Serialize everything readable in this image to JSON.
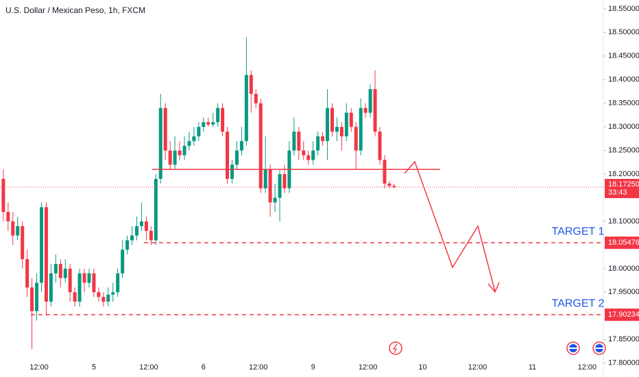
{
  "chart_data": {
    "type": "candlestick",
    "title": "U.S. Dollar / Mexican Peso, 1h, FXCM",
    "up_color": "#089981",
    "down_color": "#f23645",
    "open": [
      18.19,
      18.12,
      18.1,
      18.07,
      18.09,
      18.02,
      17.96,
      17.91,
      17.97,
      18.13,
      17.93,
      17.99,
      18.01,
      17.98,
      18.0,
      17.95,
      17.93,
      17.99,
      17.97,
      17.99,
      17.95,
      17.94,
      17.93,
      17.945,
      17.95,
      17.99,
      18.04,
      18.06,
      18.07,
      18.09,
      18.1,
      18.08,
      18.06,
      18.19,
      18.34,
      18.25,
      18.22,
      18.25,
      18.24,
      18.26,
      18.27,
      18.28,
      18.3,
      18.31,
      18.305,
      18.31,
      18.34,
      18.29,
      18.19,
      18.22,
      18.25,
      18.27,
      18.41,
      18.37,
      18.35,
      18.17,
      18.21,
      18.14,
      18.15,
      18.2,
      18.17,
      18.25,
      18.29,
      18.25,
      18.24,
      18.23,
      18.25,
      18.28,
      18.27,
      18.34,
      18.29,
      18.3,
      18.28,
      18.33,
      18.3,
      18.25,
      18.34,
      18.33,
      18.38,
      18.29,
      18.23,
      18.18,
      18.175
    ],
    "high": [
      18.21,
      18.14,
      18.12,
      18.11,
      18.1,
      18.04,
      17.98,
      17.99,
      18.14,
      18.14,
      18.01,
      18.03,
      18.02,
      18.02,
      18.01,
      17.96,
      18.0,
      18.0,
      18.0,
      18.0,
      17.96,
      17.95,
      17.96,
      17.97,
      18.0,
      18.06,
      18.07,
      18.09,
      18.11,
      18.14,
      18.11,
      18.09,
      18.2,
      18.37,
      18.35,
      18.27,
      18.28,
      18.27,
      18.28,
      18.29,
      18.3,
      18.31,
      18.32,
      18.32,
      18.33,
      18.35,
      18.35,
      18.3,
      18.23,
      18.27,
      18.3,
      18.49,
      18.42,
      18.38,
      18.36,
      18.28,
      18.22,
      18.18,
      18.21,
      18.22,
      18.27,
      18.32,
      18.3,
      18.27,
      18.25,
      18.27,
      18.29,
      18.29,
      18.38,
      18.35,
      18.32,
      18.31,
      18.35,
      18.34,
      18.31,
      18.36,
      18.35,
      18.39,
      18.42,
      18.3,
      18.24,
      18.185,
      18.18
    ],
    "low": [
      18.1,
      18.08,
      18.05,
      18.06,
      18.0,
      17.94,
      17.83,
      17.89,
      17.95,
      17.9,
      17.92,
      17.97,
      17.96,
      17.97,
      17.93,
      17.92,
      17.92,
      17.95,
      17.96,
      17.94,
      17.93,
      17.92,
      17.92,
      17.93,
      17.94,
      17.98,
      18.03,
      18.05,
      18.06,
      18.08,
      18.06,
      18.05,
      18.05,
      18.18,
      18.23,
      18.21,
      18.21,
      18.23,
      18.23,
      18.25,
      18.26,
      18.27,
      18.29,
      18.3,
      18.3,
      18.3,
      18.28,
      18.18,
      18.18,
      18.21,
      18.24,
      18.26,
      18.33,
      18.34,
      18.16,
      18.16,
      18.11,
      18.12,
      18.1,
      18.16,
      18.16,
      18.24,
      18.23,
      18.23,
      18.22,
      18.22,
      18.24,
      18.26,
      18.23,
      18.28,
      18.27,
      18.25,
      18.27,
      18.29,
      18.21,
      18.24,
      18.32,
      18.32,
      18.28,
      18.22,
      18.17,
      18.17,
      18.17
    ],
    "close": [
      18.12,
      18.1,
      18.07,
      18.09,
      18.02,
      17.96,
      17.91,
      17.97,
      18.13,
      17.93,
      17.99,
      18.01,
      17.98,
      18.0,
      17.95,
      17.93,
      17.99,
      17.97,
      17.99,
      17.95,
      17.94,
      17.93,
      17.945,
      17.95,
      17.99,
      18.04,
      18.06,
      18.07,
      18.09,
      18.1,
      18.08,
      18.06,
      18.19,
      18.34,
      18.25,
      18.22,
      18.25,
      18.24,
      18.26,
      18.27,
      18.28,
      18.3,
      18.31,
      18.305,
      18.31,
      18.34,
      18.29,
      18.19,
      18.22,
      18.25,
      18.27,
      18.41,
      18.37,
      18.35,
      18.17,
      18.21,
      18.14,
      18.15,
      18.2,
      18.17,
      18.25,
      18.29,
      18.25,
      18.24,
      18.23,
      18.25,
      18.28,
      18.27,
      18.34,
      18.29,
      18.3,
      18.28,
      18.33,
      18.3,
      18.25,
      18.34,
      18.33,
      18.38,
      18.29,
      18.23,
      18.18,
      18.175,
      18.1725
    ],
    "xlim": [
      -0.7,
      125.9
    ],
    "xticks": [
      {
        "value": 7.5,
        "label": "12:00"
      },
      {
        "value": 19,
        "label": "5"
      },
      {
        "value": 30.5,
        "label": "12:00"
      },
      {
        "value": 42,
        "label": "6"
      },
      {
        "value": 53.5,
        "label": "12:00"
      },
      {
        "value": 65,
        "label": "9"
      },
      {
        "value": 76.5,
        "label": "12:00"
      },
      {
        "value": 88,
        "label": "10"
      },
      {
        "value": 99.5,
        "label": "12:00"
      },
      {
        "value": 111,
        "label": "11"
      },
      {
        "value": 122.5,
        "label": "12:00"
      }
    ],
    "ylim": [
      17.7705,
      18.5687
    ],
    "yticks": [
      {
        "value": 18.55,
        "label": "18.55000"
      },
      {
        "value": 18.5,
        "label": "18.50000"
      },
      {
        "value": 18.45,
        "label": "18.45000"
      },
      {
        "value": 18.4,
        "label": "18.40000"
      },
      {
        "value": 18.35,
        "label": "18.35000"
      },
      {
        "value": 18.3,
        "label": "18.30000"
      },
      {
        "value": 18.25,
        "label": "18.25000"
      },
      {
        "value": 18.2,
        "label": "18.20000"
      },
      {
        "value": 18.1,
        "label": "18.10000"
      },
      {
        "value": 18.0,
        "label": "18.00000"
      },
      {
        "value": 17.95,
        "label": "17.95000"
      },
      {
        "value": 17.85,
        "label": "17.85000"
      },
      {
        "value": 17.8,
        "label": "17.80000"
      }
    ],
    "last_price": {
      "value": 18.1725,
      "label": "18.17250",
      "countdown": "33:43"
    },
    "resistance_line": 18.21,
    "levels": [
      {
        "name": "TARGET 1",
        "value": 18.05476,
        "label": "18.05476"
      },
      {
        "name": "TARGET 2",
        "value": 17.90234,
        "label": "17.90234"
      }
    ]
  }
}
